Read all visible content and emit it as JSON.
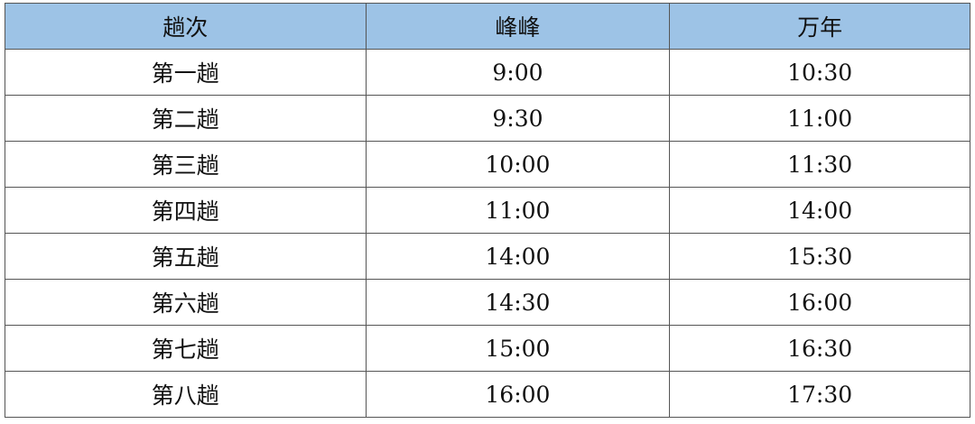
{
  "header": {
    "col1": "趟次",
    "col2": "峰峰",
    "col3": "万年",
    "bg_color": "#9DC3E6"
  },
  "rows": [
    {
      "trip": "第一趟",
      "fengfeng": "9:00",
      "wannian": "10:30"
    },
    {
      "trip": "第二趟",
      "fengfeng": "9:30",
      "wannian": "11:00"
    },
    {
      "trip": "第三趟",
      "fengfeng": "10:00",
      "wannian": "11:30"
    },
    {
      "trip": "第四趟",
      "fengfeng": "11:00",
      "wannian": "14:00"
    },
    {
      "trip": "第五趟",
      "fengfeng": "14:00",
      "wannian": "15:30"
    },
    {
      "trip": "第六趟",
      "fengfeng": "14:30",
      "wannian": "16:00"
    },
    {
      "trip": "第七趟",
      "fengfeng": "15:00",
      "wannian": "16:30"
    },
    {
      "trip": "第八趟",
      "fengfeng": "16:00",
      "wannian": "17:30"
    }
  ]
}
